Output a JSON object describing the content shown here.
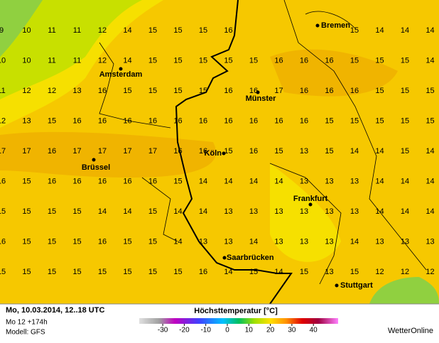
{
  "header": {
    "title": "Höchsttemperatur [°C]"
  },
  "map": {
    "grid": [
      [
        9,
        10,
        11,
        11,
        12,
        14,
        15,
        15,
        15,
        16,
        null,
        null,
        null,
        null,
        15,
        14,
        14,
        14
      ],
      [
        10,
        10,
        11,
        11,
        12,
        14,
        15,
        15,
        15,
        15,
        15,
        16,
        16,
        16,
        15,
        15,
        15,
        14
      ],
      [
        11,
        12,
        12,
        13,
        16,
        15,
        15,
        15,
        15,
        16,
        16,
        17,
        16,
        16,
        16,
        15,
        15,
        15
      ],
      [
        12,
        13,
        15,
        16,
        16,
        16,
        16,
        16,
        16,
        16,
        16,
        16,
        16,
        15,
        15,
        15,
        15,
        15
      ],
      [
        17,
        17,
        16,
        17,
        17,
        17,
        17,
        16,
        16,
        15,
        16,
        15,
        13,
        15,
        14,
        14,
        15,
        14
      ],
      [
        16,
        15,
        16,
        16,
        16,
        16,
        16,
        15,
        14,
        14,
        14,
        14,
        13,
        13,
        13,
        14,
        14,
        14
      ],
      [
        15,
        15,
        15,
        15,
        14,
        14,
        15,
        14,
        14,
        13,
        13,
        13,
        13,
        13,
        13,
        14,
        14,
        14
      ],
      [
        16,
        15,
        15,
        15,
        16,
        15,
        15,
        14,
        13,
        13,
        14,
        13,
        13,
        13,
        14,
        13,
        13,
        13
      ],
      [
        15,
        15,
        15,
        15,
        15,
        15,
        15,
        15,
        16,
        14,
        15,
        14,
        15,
        13,
        15,
        12,
        12,
        12
      ]
    ],
    "cities": [
      "Bremen",
      "Amsterdam",
      "Münster",
      "Köln",
      "Brüssel",
      "Frankfurt",
      "Saarbrücken",
      "Stuttgart"
    ]
  },
  "footer": {
    "date": "Mo, 10.03.2014, 12..18 UTC",
    "run": "Mo 12 +174h",
    "model": "Modell: GFS",
    "brand": "WetterOnline"
  },
  "legend": {
    "ticks": [
      -30,
      -20,
      -10,
      0,
      10,
      20,
      30,
      40
    ]
  }
}
